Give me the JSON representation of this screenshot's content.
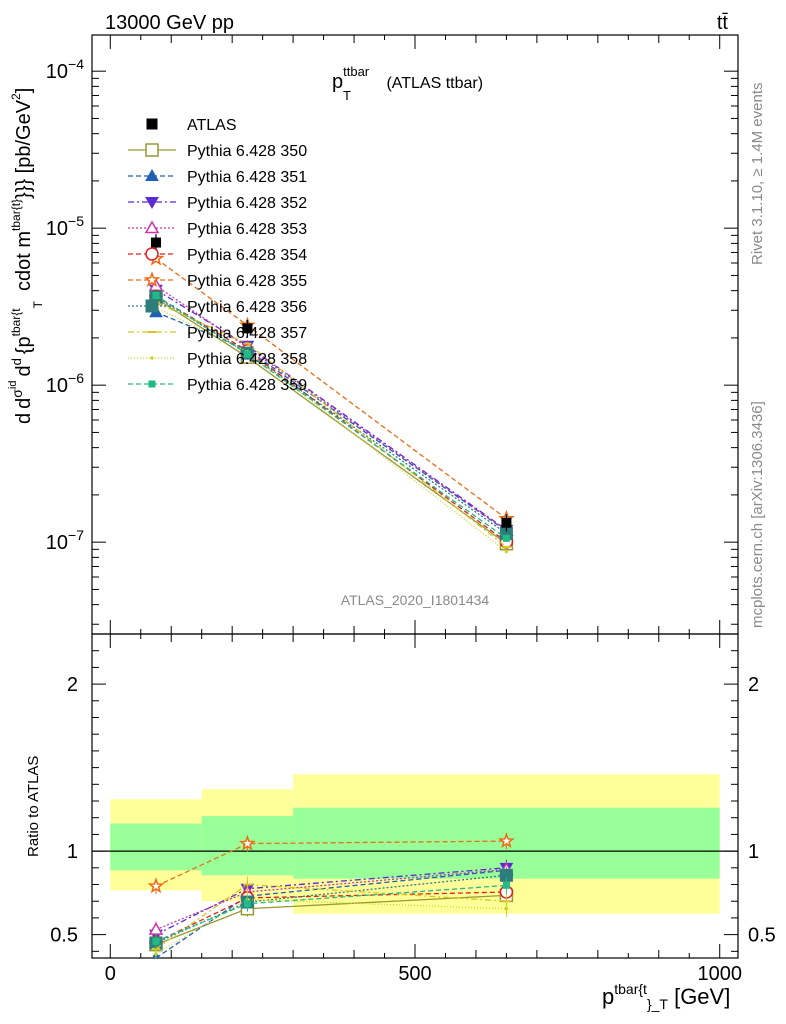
{
  "header": {
    "left": "13000 GeV pp",
    "right": "tt̄"
  },
  "side_labels": {
    "rivet": "Rivet 3.1.10, ≥ 1.4M events",
    "mcplots": "mcplots.cern.ch [arXiv:1306.3436]"
  },
  "chart_data": {
    "type": "scatter",
    "x_log": false,
    "main": {
      "title_main": "p",
      "title_sup": "ttbar",
      "title_sub": "T",
      "title_rest": " (ATLAS ttbar)",
      "analysis_label": "ATLAS_2020_I1801434",
      "ylabel": "d d²σ^{id} / d² {p^{tbar{t}}_T cdot m^{tbar{t}}}} [pb/GeV²]",
      "ylabel_parts": {
        "a": "d",
        "b": "d",
        "c": "σ",
        "c_sup": "id",
        "d": "d",
        "e": "{p",
        "e_sup": "tbar{t",
        "e_sub": "T",
        "f": "cdot m",
        "f_sup": "tbar{t}",
        "g": "}}} [pb/GeV",
        "g_sup": "2",
        "h": "]"
      },
      "y_log": true,
      "ylim": [
        2.6e-08,
        0.00017
      ],
      "y_ticks": [
        {
          "value": 1e-07,
          "base": "10",
          "exp": "−7"
        },
        {
          "value": 1e-06,
          "base": "10",
          "exp": "−6"
        },
        {
          "value": 1e-05,
          "base": "10",
          "exp": "−5"
        },
        {
          "value": 0.0001,
          "base": "10",
          "exp": "−4"
        }
      ],
      "data": {
        "name": "ATLAS",
        "x": [
          75,
          225,
          650
        ],
        "y": [
          8.1e-06,
          2.3e-06,
          1.33e-07
        ],
        "xerr": [
          [
            0,
            150
          ],
          [
            150,
            300
          ],
          [
            300,
            1000
          ]
        ]
      }
    },
    "ratio": {
      "ylabel": "Ratio to ATLAS",
      "ylim": [
        0.36,
        2.3
      ],
      "y_ticks": [
        {
          "value": 0.5,
          "label": "0.5"
        },
        {
          "value": 1,
          "label": "1"
        },
        {
          "value": 2,
          "label": "2"
        }
      ],
      "bands": [
        {
          "x": [
            0,
            150
          ],
          "inner": [
            0.885,
            1.165
          ],
          "outer": [
            0.765,
            1.31
          ]
        },
        {
          "x": [
            150,
            300
          ],
          "inner": [
            0.855,
            1.21
          ],
          "outer": [
            0.7,
            1.37
          ]
        },
        {
          "x": [
            300,
            1000
          ],
          "inner": [
            0.835,
            1.26
          ],
          "outer": [
            0.625,
            1.46
          ]
        }
      ]
    },
    "x": {
      "xlim": [
        -30,
        1030
      ],
      "ticks": [
        0,
        500,
        1000
      ],
      "tick_labels": [
        "0",
        "500",
        "1000"
      ],
      "xlabel_main": "p",
      "xlabel_sup": "tbar{t",
      "xlabel_sub": "}_T",
      "xlabel_rest": " [GeV]"
    },
    "legend_placement": "top-left",
    "series": [
      {
        "name": "Pythia 6.428 350",
        "color": "#999933",
        "dash": "",
        "marker": "square-open",
        "x": [
          75,
          225,
          650
        ],
        "ratio": [
          0.44,
          0.655,
          0.735
        ]
      },
      {
        "name": "Pythia 6.428 351",
        "color": "#1f5fb4",
        "dash": "5,3",
        "marker": "triangle-up",
        "x": [
          75,
          225,
          650
        ],
        "ratio": [
          0.36,
          0.73,
          0.885
        ]
      },
      {
        "name": "Pythia 6.428 352",
        "color": "#5a2ad6",
        "dash": "6,3,2,3",
        "marker": "triangle-down",
        "x": [
          75,
          225,
          650
        ],
        "ratio": [
          0.5,
          0.775,
          0.9
        ]
      },
      {
        "name": "Pythia 6.428 353",
        "color": "#cc33aa",
        "dash": "2,2",
        "marker": "triangle-up-open",
        "x": [
          75,
          225,
          650
        ],
        "ratio": [
          0.53,
          0.755,
          0.89
        ]
      },
      {
        "name": "Pythia 6.428 354",
        "color": "#e01e1e",
        "dash": "5,3",
        "marker": "circle-open",
        "x": [
          75,
          225,
          650
        ],
        "ratio": [
          0.455,
          0.72,
          0.755
        ]
      },
      {
        "name": "Pythia 6.428 355",
        "color": "#ee6a13",
        "dash": "5,3",
        "marker": "star-open",
        "x": [
          75,
          225,
          650
        ],
        "ratio": [
          0.79,
          1.045,
          1.06
        ]
      },
      {
        "name": "Pythia 6.428 356",
        "color": "#2e7d7d",
        "dash": "2,2",
        "marker": "square",
        "x": [
          75,
          225,
          650
        ],
        "ratio": [
          0.45,
          0.695,
          0.855
        ]
      },
      {
        "name": "Pythia 6.428 357",
        "color": "#d6c61e",
        "dash": "6,3,2,3",
        "marker": "tick",
        "x": [
          75,
          225,
          650
        ],
        "ratio": [
          0.415,
          0.8,
          0.7
        ]
      },
      {
        "name": "Pythia 6.428 358",
        "color": "#c8d82a",
        "dash": "1,2",
        "marker": "dot",
        "x": [
          75,
          225,
          650
        ],
        "ratio": [
          0.385,
          0.71,
          0.655
        ]
      },
      {
        "name": "Pythia 6.428 359",
        "color": "#22bb88",
        "dash": "5,3",
        "marker": "square-small",
        "x": [
          75,
          225,
          650
        ],
        "ratio": [
          0.46,
          0.685,
          0.795
        ]
      }
    ]
  }
}
